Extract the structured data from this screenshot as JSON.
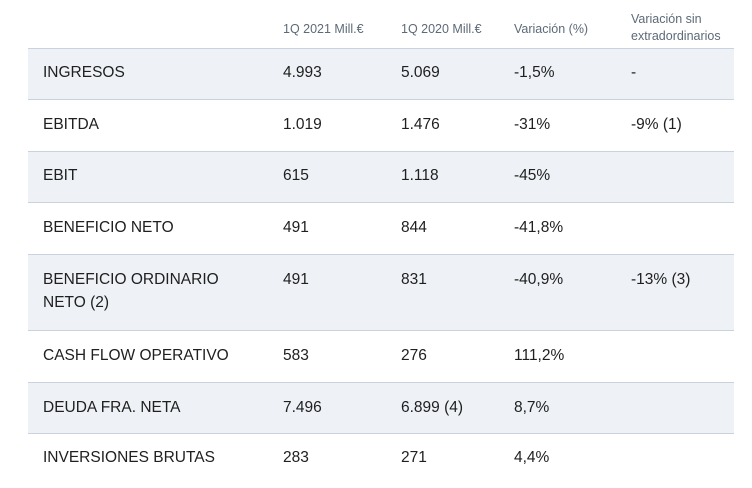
{
  "columns": [
    "",
    "1Q 2021 Mill.€",
    "1Q 2020 Mill.€",
    "Variación (%)",
    "Variación sin extradordinarios"
  ],
  "column_lines": {
    "c4": [
      "Variación sin",
      "extradordinarios"
    ]
  },
  "rows": [
    {
      "label_lines": [
        "INGRESOS"
      ],
      "q1_2021": "4.993",
      "q1_2020": "5.069",
      "variation": "-1,5%",
      "variation_ex": "-"
    },
    {
      "label_lines": [
        "EBITDA"
      ],
      "q1_2021": "1.019",
      "q1_2020": "1.476",
      "variation": "-31%",
      "variation_ex": "-9% (1)"
    },
    {
      "label_lines": [
        "EBIT"
      ],
      "q1_2021": "615",
      "q1_2020": "1.118",
      "variation": "-45%",
      "variation_ex": ""
    },
    {
      "label_lines": [
        "BENEFICIO NETO"
      ],
      "q1_2021": "491",
      "q1_2020": "844",
      "variation": "-41,8%",
      "variation_ex": ""
    },
    {
      "label_lines": [
        "BENEFICIO ORDINARIO",
        "NETO (2)"
      ],
      "q1_2021": "491",
      "q1_2020": "831",
      "variation": "-40,9%",
      "variation_ex": "-13% (3)"
    },
    {
      "label_lines": [
        "CASH FLOW OPERATIVO"
      ],
      "q1_2021": "583",
      "q1_2020": "276",
      "variation": "111,2%",
      "variation_ex": ""
    },
    {
      "label_lines": [
        "DEUDA FRA. NETA"
      ],
      "q1_2021": "7.496",
      "q1_2020": "6.899 (4)",
      "variation": "8,7%",
      "variation_ex": ""
    },
    {
      "label_lines": [
        "INVERSIONES BRUTAS"
      ],
      "q1_2021": "283",
      "q1_2020": "271",
      "variation": "4,4%",
      "variation_ex": ""
    }
  ],
  "colors": {
    "shaded_row": "#eef2f6",
    "border": "#c9d3dd",
    "header_text": "#5d6a78"
  }
}
